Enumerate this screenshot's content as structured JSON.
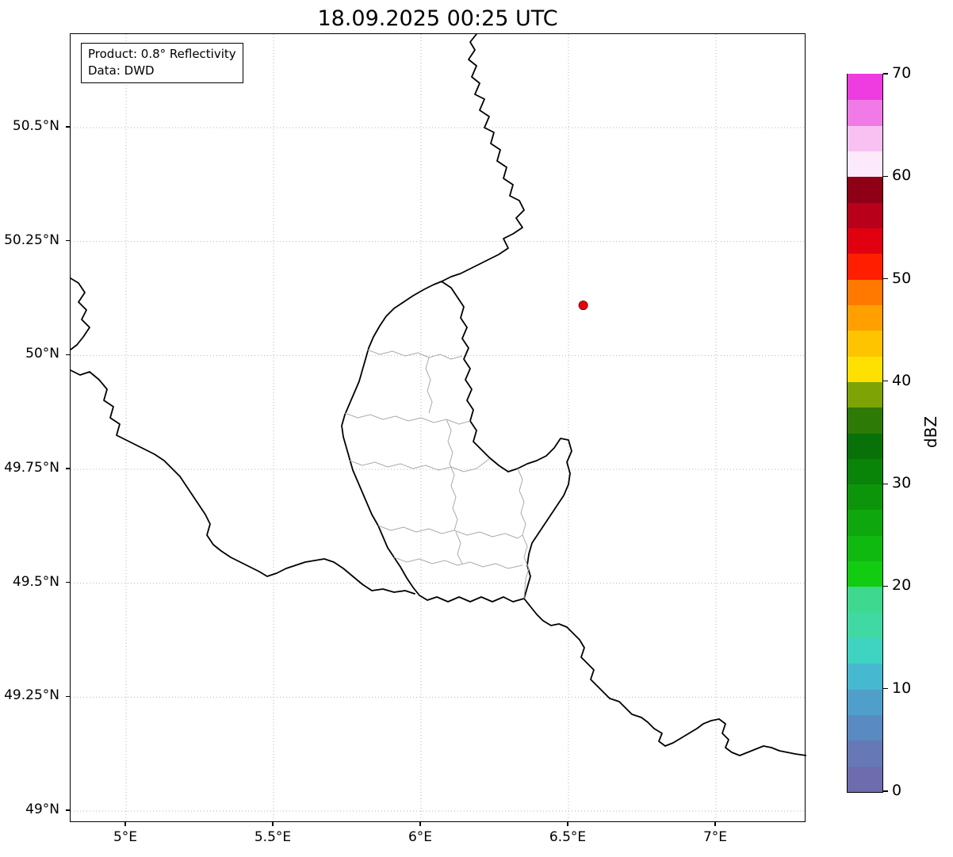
{
  "title": "18.09.2025 00:25 UTC",
  "annotation": {
    "line1": "Product: 0.8° Reflectivity",
    "line2": "Data: DWD"
  },
  "axes": {
    "xlim": [
      4.8118,
      7.3064
    ],
    "ylim": [
      48.9739,
      50.7053
    ],
    "x_ticks": [
      {
        "value": 5.0,
        "label": "5°E"
      },
      {
        "value": 5.5,
        "label": "5.5°E"
      },
      {
        "value": 6.0,
        "label": "6°E"
      },
      {
        "value": 6.5,
        "label": "6.5°E"
      },
      {
        "value": 7.0,
        "label": "7°E"
      }
    ],
    "y_ticks": [
      {
        "value": 49.0,
        "label": "49°N"
      },
      {
        "value": 49.25,
        "label": "49.25°N"
      },
      {
        "value": 49.5,
        "label": "49.5°N"
      },
      {
        "value": 49.75,
        "label": "49.75°N"
      },
      {
        "value": 50.0,
        "label": "50°N"
      },
      {
        "value": 50.25,
        "label": "50.25°N"
      },
      {
        "value": 50.5,
        "label": "50.5°N"
      }
    ],
    "grid_style": "dotted"
  },
  "radar_marker": {
    "lon": 6.55,
    "lat": 50.11,
    "color": "#e8000b",
    "edge_color": "#8b0000"
  },
  "colorbar": {
    "label": "dBZ",
    "vmin": 0,
    "vmax": 70,
    "ticks": [
      0,
      10,
      20,
      30,
      40,
      50,
      60,
      70
    ],
    "colors": [
      "#6e6cae",
      "#6679b6",
      "#5a8ac2",
      "#4f9fca",
      "#46b8d0",
      "#3fd3c2",
      "#40d9a4",
      "#3ed98e",
      "#12cc12",
      "#10b90f",
      "#0ea70d",
      "#0c950b",
      "#0a8309",
      "#087107",
      "#2e7a06",
      "#7da304",
      "#ffe100",
      "#ffc400",
      "#ffa000",
      "#ff7800",
      "#ff1e00",
      "#e00010",
      "#b8001a",
      "#8f0016",
      "#fce9fb",
      "#f9c1f2",
      "#f07ae6",
      "#ee3ce1"
    ]
  },
  "map": {
    "country_borders": [
      "M512,0 L504,10 L510,20 L502,32 L512,40 L506,54 L516,62 L510,76 L522,82 L516,96 L528,104 L522,118 L534,124 L530,138 L542,146 L538,160 L550,168 L546,182 L558,190 L554,204 L566,210 L572,222 L562,232 L570,244 L558,252 L546,258 L552,270 L540,278 L528,284 L516,290 L504,296 L492,302 L480,306 L468,312",
      "M468,312 L480,320 L488,332 L496,344 L492,358 L500,370 L494,384 L502,396 L496,410 L504,422 L498,436 L506,448 L500,462 L508,474 L504,488 L512,500 L508,514 L518,524 L528,534 L540,544 L552,552 L564,548 L576,542 L588,538 L600,532 L610,522 L618,510 L628,512 L632,526 L626,540 L630,554 L628,568 L622,582 L614,594 L606,606 L598,618 L590,630 L582,642 L578,656 L576,670 L580,684 L576,698 L572,712 L558,716 L546,710 L532,716 L518,710 L504,716 L490,710 L476,716 L462,710 L450,714 L440,708 L432,698 L424,686 L416,672 L408,660 L400,648 L394,634 L388,620 L380,606 L374,592 L368,578 L362,564 L356,550 L352,536 L348,522 L344,508 L342,494 L346,480 L352,466 L358,452 L364,438 L368,424 L372,410 L376,396 L382,382 L390,368 L398,356 L408,346 L420,338 L432,330 L446,322 L458,316 Z",
      "M0,308 L10,314 L18,326 L10,338 L20,348 L14,360 L24,370 L16,382 L8,392 L0,398",
      "M0,424 L12,430 L24,426 L36,436 L46,448 L42,462 L54,470 L50,484 L62,492 L58,506 L70,512 L82,518 L94,524 L106,530 L118,538 L128,548 L138,558 L146,570 L154,582 L162,594 L170,606 L176,618 L172,632 L180,644 L190,652 L202,660 L214,666 L226,672 L238,678 L248,684 L260,680 L272,674 L284,670 L296,666 L308,664 L320,662 L332,666 L344,674 L356,684 L368,694 L380,702 L394,700 L408,704 L422,702 L434,706",
      "M572,712 L580,722 L588,732 L596,740 L606,746 L616,744 L626,748 L634,756 L642,764 L648,774 L644,786 L652,794 L660,802 L656,814 L664,822 L672,830 L680,838 L692,842 L700,850 L708,858 L720,862 L728,868 L736,876 L746,882 L742,892 L750,898 L760,894 L770,888 L780,882 L790,876 L798,870 L808,866 L818,864 L826,870 L822,882 L830,890 L826,900 L834,906 L844,910 L854,906 L864,902 L874,898 L884,900 L894,904 L904,906 L914,908 L928,910"
    ],
    "regional_borders": [
      "M374,398 L390,404 L406,400 L422,406 L438,402 L452,408 L466,404 L480,410 L494,406",
      "M452,408 L448,422 L454,436 L450,450 L456,464 L452,478",
      "M346,478 L362,484 L378,480 L394,486 L410,482 L426,488 L442,484 L458,490 L474,486 L490,492 L504,488",
      "M352,538 L368,544 L384,540 L400,546 L416,542 L432,548 L448,544 L464,550 L480,546 L496,552 L512,548 L528,536",
      "M564,548 L570,562 L566,576 L572,590 L568,604 L574,618 L570,632 L576,646 L572,660 L578,674 L574,688 L572,712",
      "M388,620 L404,626 L420,622 L436,628 L452,624 L468,630 L484,626 L500,632 L516,628 L532,634 L548,630 L564,636 L570,632",
      "M408,660 L424,666 L440,662 L456,668 L472,664 L488,670 L504,666 L520,672 L536,668 L552,674 L570,670",
      "M474,486 L480,500 L476,514 L482,528 L478,542 L484,556 L480,570 L486,584 L482,598 L488,612 L484,626",
      "M486,628 L492,642 L488,656 L494,668"
    ]
  },
  "chart_data": {
    "type": "map",
    "title": "18.09.2025 00:25 UTC",
    "x_tick_labels": [
      "5°E",
      "5.5°E",
      "6°E",
      "6.5°E",
      "7°E"
    ],
    "y_tick_labels": [
      "49°N",
      "49.25°N",
      "49.5°N",
      "49.75°N",
      "50°N",
      "50.25°N",
      "50.5°N"
    ],
    "colorbar": {
      "label": "dBZ",
      "range": [
        0,
        70
      ],
      "tick_step": 10
    },
    "markers": [
      {
        "lon": 6.55,
        "lat": 50.11,
        "color": "red",
        "meaning": "radar site marker"
      }
    ]
  }
}
